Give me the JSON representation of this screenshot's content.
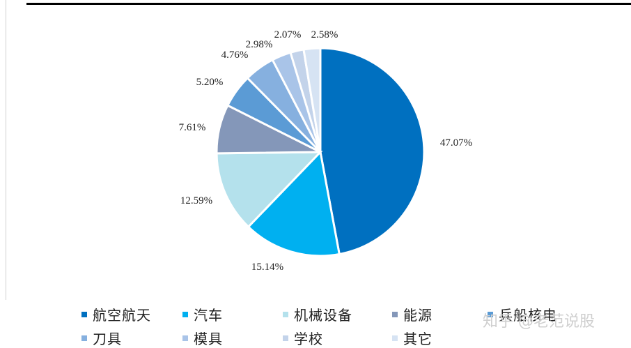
{
  "chart_data": {
    "type": "pie",
    "title": "",
    "slices": [
      {
        "label": "航空航天",
        "value": 47.07,
        "display": "47.07%",
        "color": "#0070c0"
      },
      {
        "label": "汽车",
        "value": 15.14,
        "display": "15.14%",
        "color": "#00b0f0"
      },
      {
        "label": "机械设备",
        "value": 12.59,
        "display": "12.59%",
        "color": "#b4e1ec"
      },
      {
        "label": "能源",
        "value": 7.61,
        "display": "7.61%",
        "color": "#8497b9"
      },
      {
        "label": "兵船核电",
        "value": 5.2,
        "display": "5.20%",
        "color": "#5b9bd5"
      },
      {
        "label": "刀具",
        "value": 4.76,
        "display": "4.76%",
        "color": "#86b0df"
      },
      {
        "label": "模具",
        "value": 2.98,
        "display": "2.98%",
        "color": "#a9c4e8"
      },
      {
        "label": "学校",
        "value": 2.07,
        "display": "2.07%",
        "color": "#c3d3ea"
      },
      {
        "label": "其它",
        "value": 2.58,
        "display": "2.58%",
        "color": "#d6e3f3"
      }
    ],
    "legend_position": "bottom",
    "start": "12 o'clock",
    "direction": "clockwise"
  },
  "watermark": {
    "text": "知乎 @老范说股"
  }
}
